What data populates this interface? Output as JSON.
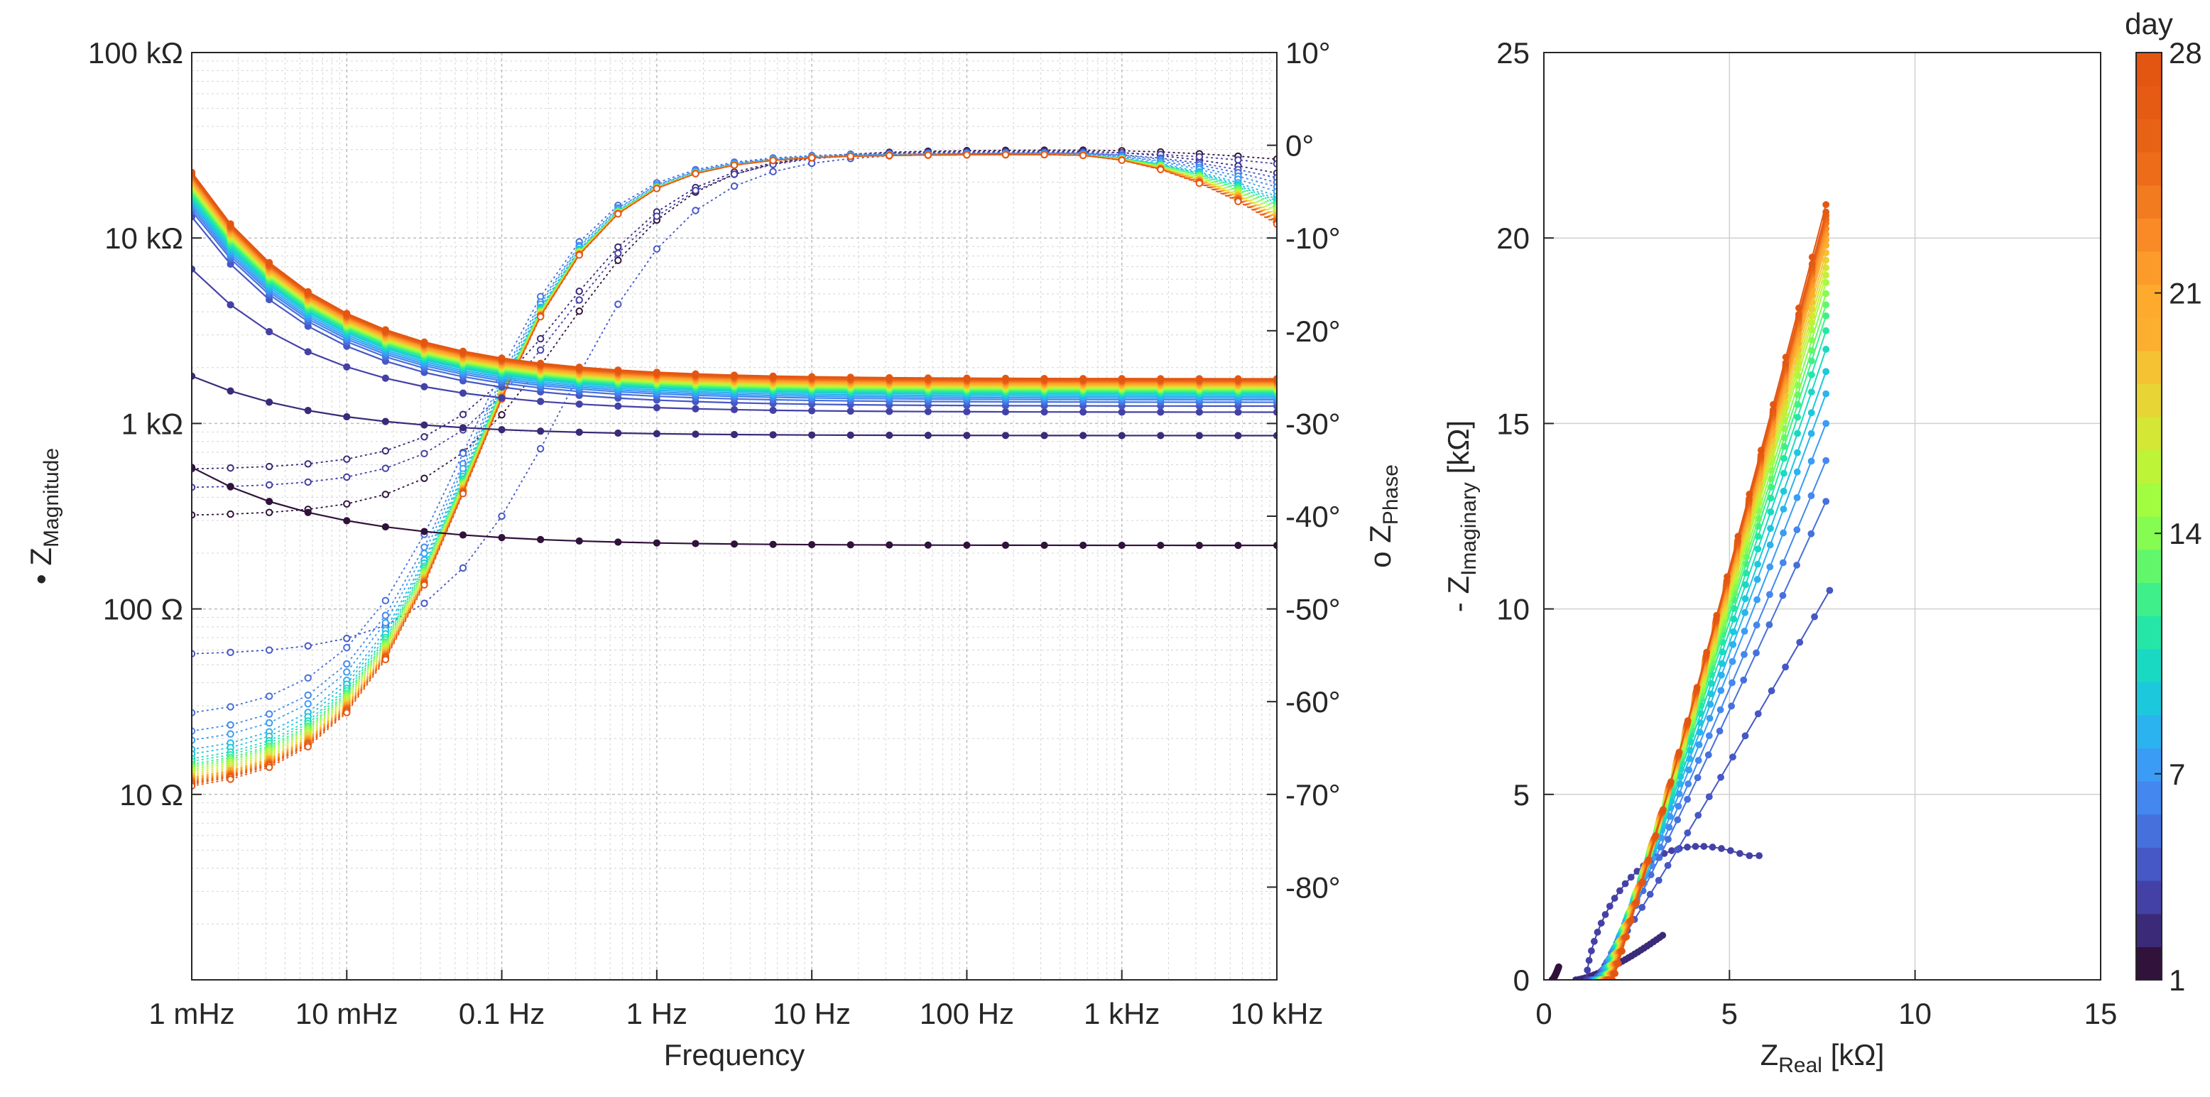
{
  "colorbar": {
    "title": "day",
    "ticks": [
      1,
      7,
      14,
      21,
      28
    ],
    "min": 1,
    "max": 28,
    "colors": [
      "#30123b",
      "#3b2a78",
      "#4441a6",
      "#4657c6",
      "#4670dc",
      "#4487ee",
      "#3a9cf5",
      "#2ab3ef",
      "#1cc8db",
      "#1ad9c3",
      "#25e6a7",
      "#3ff08a",
      "#62f76b",
      "#86fb51",
      "#a2fc40",
      "#bdf438",
      "#d3e734",
      "#e6d534",
      "#f4c232",
      "#fcaf2f",
      "#feaa2d",
      "#fd9b2a",
      "#f98a25",
      "#f27a1f",
      "#ec6c1a",
      "#e86216",
      "#e55b14",
      "#e35612"
    ]
  },
  "chart_data": [
    {
      "type": "line",
      "title": "",
      "xlabel": "Frequency",
      "xscale": "log",
      "xlim": [
        0.001,
        10000
      ],
      "x_tick_labels": [
        "1 mHz",
        "10 mHz",
        "0.1 Hz",
        "1 Hz",
        "10 Hz",
        "100 Hz",
        "1 kHz",
        "10 kHz"
      ],
      "x_tick_values": [
        0.001,
        0.01,
        0.1,
        1,
        10,
        100,
        1000,
        10000
      ],
      "left_axis": {
        "label": "• Z",
        "label_subscript": "Magnitude",
        "scale": "log",
        "lim": [
          1,
          100000
        ],
        "tick_labels": [
          "100 kΩ",
          "10 kΩ",
          "1 kΩ",
          "100 Ω",
          "10 Ω"
        ],
        "tick_values": [
          100000,
          10000,
          1000,
          100,
          10
        ]
      },
      "right_axis": {
        "label": "o Z",
        "label_subscript": "Phase",
        "lim": [
          -90,
          10
        ],
        "tick_labels": [
          "10°",
          "0°",
          "-10°",
          "-20°",
          "-30°",
          "-40°",
          "-50°",
          "-60°",
          "-70°",
          "-80°"
        ],
        "tick_values": [
          10,
          0,
          -10,
          -20,
          -30,
          -40,
          -50,
          -60,
          -70,
          -80
        ]
      },
      "grid": true,
      "frequencies_log10": [
        -3,
        -2.75,
        -2.5,
        -2.25,
        -2,
        -1.75,
        -1.5,
        -1.25,
        -1,
        -0.75,
        -0.5,
        -0.25,
        0,
        0.25,
        0.5,
        0.75,
        1,
        1.25,
        1.5,
        1.75,
        2,
        2.25,
        2.5,
        2.75,
        3,
        3.25,
        3.5,
        3.75,
        4
      ],
      "magnitude_model": {
        "days": [
          1,
          2,
          3,
          4,
          5,
          6,
          7,
          8,
          9,
          10,
          11,
          12,
          13,
          14,
          15,
          16,
          17,
          18,
          19,
          20,
          21,
          22,
          23,
          24,
          25,
          26,
          27,
          28
        ],
        "high_freq_ohm": [
          220,
          860,
          1150,
          1240,
          1300,
          1340,
          1370,
          1400,
          1430,
          1450,
          1470,
          1490,
          1510,
          1525,
          1540,
          1555,
          1570,
          1585,
          1600,
          1615,
          1630,
          1645,
          1660,
          1675,
          1690,
          1705,
          1720,
          1740
        ],
        "at_1mHz_ohm": [
          580,
          1800,
          6800,
          13000,
          14000,
          14500,
          15000,
          15500,
          16000,
          16500,
          17000,
          17500,
          18000,
          18300,
          18600,
          18900,
          19200,
          19500,
          19800,
          20100,
          20400,
          20700,
          21000,
          21300,
          21600,
          21900,
          22200,
          22600
        ]
      },
      "phase_model": {
        "days": [
          1,
          2,
          3,
          4,
          5,
          6,
          7,
          8,
          9,
          10,
          11,
          12,
          13,
          14,
          15,
          16,
          17,
          18,
          19,
          20,
          21,
          22,
          23,
          24,
          25,
          26,
          27,
          28
        ],
        "at_1mHz_deg": [
          -40,
          -35,
          -37,
          -55,
          -62,
          -64,
          -65,
          -66,
          -66.5,
          -67,
          -67.3,
          -67.6,
          -67.8,
          -68,
          -68.2,
          -68.4,
          -68.6,
          -68.8,
          -69,
          -69.1,
          -69.2,
          -69.3,
          -69.4,
          -69.5,
          -69.6,
          -69.7,
          -69.8,
          -70
        ],
        "mid_freq_deg": [
          -0.5,
          -0.6,
          -0.7,
          -0.8,
          -0.8,
          -0.9,
          -0.9,
          -1,
          -1,
          -1,
          -1,
          -1,
          -1,
          -1,
          -1,
          -1,
          -1,
          -1,
          -1,
          -1,
          -1,
          -1,
          -1,
          -1,
          -1,
          -1,
          -1,
          -1
        ],
        "at_10kHz_deg": [
          -1.5,
          -3,
          -2,
          -3.5,
          -4,
          -4.5,
          -5,
          -5.5,
          -5.8,
          -6,
          -6.2,
          -6.4,
          -6.6,
          -6.8,
          -7,
          -7.2,
          -7.4,
          -7.5,
          -7.6,
          -7.7,
          -7.8,
          -7.9,
          -8,
          -8.1,
          -8.2,
          -8.3,
          -8.4,
          -8.5
        ]
      }
    },
    {
      "type": "line",
      "title": "",
      "xlabel": "Z",
      "xlabel_subscript": "Real",
      "xlabel_unit": " [kΩ]",
      "ylabel": "- Z",
      "ylabel_subscript": "Imaginary",
      "ylabel_unit": " [kΩ]",
      "xlim": [
        0,
        15
      ],
      "ylim": [
        0,
        25
      ],
      "x_ticks": [
        0,
        5,
        10,
        15
      ],
      "y_ticks": [
        0,
        5,
        10,
        15,
        20,
        25
      ],
      "grid": true,
      "nyquist_endpoints": {
        "days": [
          1,
          2,
          3,
          4,
          5,
          6,
          7,
          8,
          9,
          10,
          11,
          12,
          13,
          14,
          15,
          16,
          17,
          18,
          19,
          20,
          21,
          22,
          23,
          24,
          25,
          26,
          27,
          28
        ],
        "start_real_kohm": [
          0.22,
          0.86,
          1.15,
          1.24,
          1.3,
          1.34,
          1.37,
          1.4,
          1.43,
          1.45,
          1.47,
          1.49,
          1.51,
          1.525,
          1.54,
          1.555,
          1.57,
          1.585,
          1.6,
          1.615,
          1.63,
          1.645,
          1.66,
          1.675,
          1.69,
          1.705,
          1.72,
          1.74
        ],
        "end_real_kohm": [
          0.4,
          3.2,
          5.8,
          7.7,
          7.6,
          7.6,
          7.6,
          7.6,
          7.6,
          7.6,
          7.6,
          7.6,
          7.6,
          7.6,
          7.6,
          7.6,
          7.6,
          7.6,
          7.6,
          7.6,
          7.6,
          7.6,
          7.6,
          7.6,
          7.6,
          7.6,
          7.6,
          7.6
        ],
        "end_imag_kohm": [
          0.35,
          1.2,
          3.5,
          10.5,
          12.9,
          14.0,
          15.0,
          15.8,
          16.4,
          17.0,
          17.5,
          17.9,
          18.2,
          18.5,
          18.8,
          19.0,
          19.2,
          19.4,
          19.6,
          19.8,
          19.95,
          20.1,
          20.25,
          20.4,
          20.5,
          20.6,
          20.7,
          20.9
        ]
      }
    }
  ]
}
